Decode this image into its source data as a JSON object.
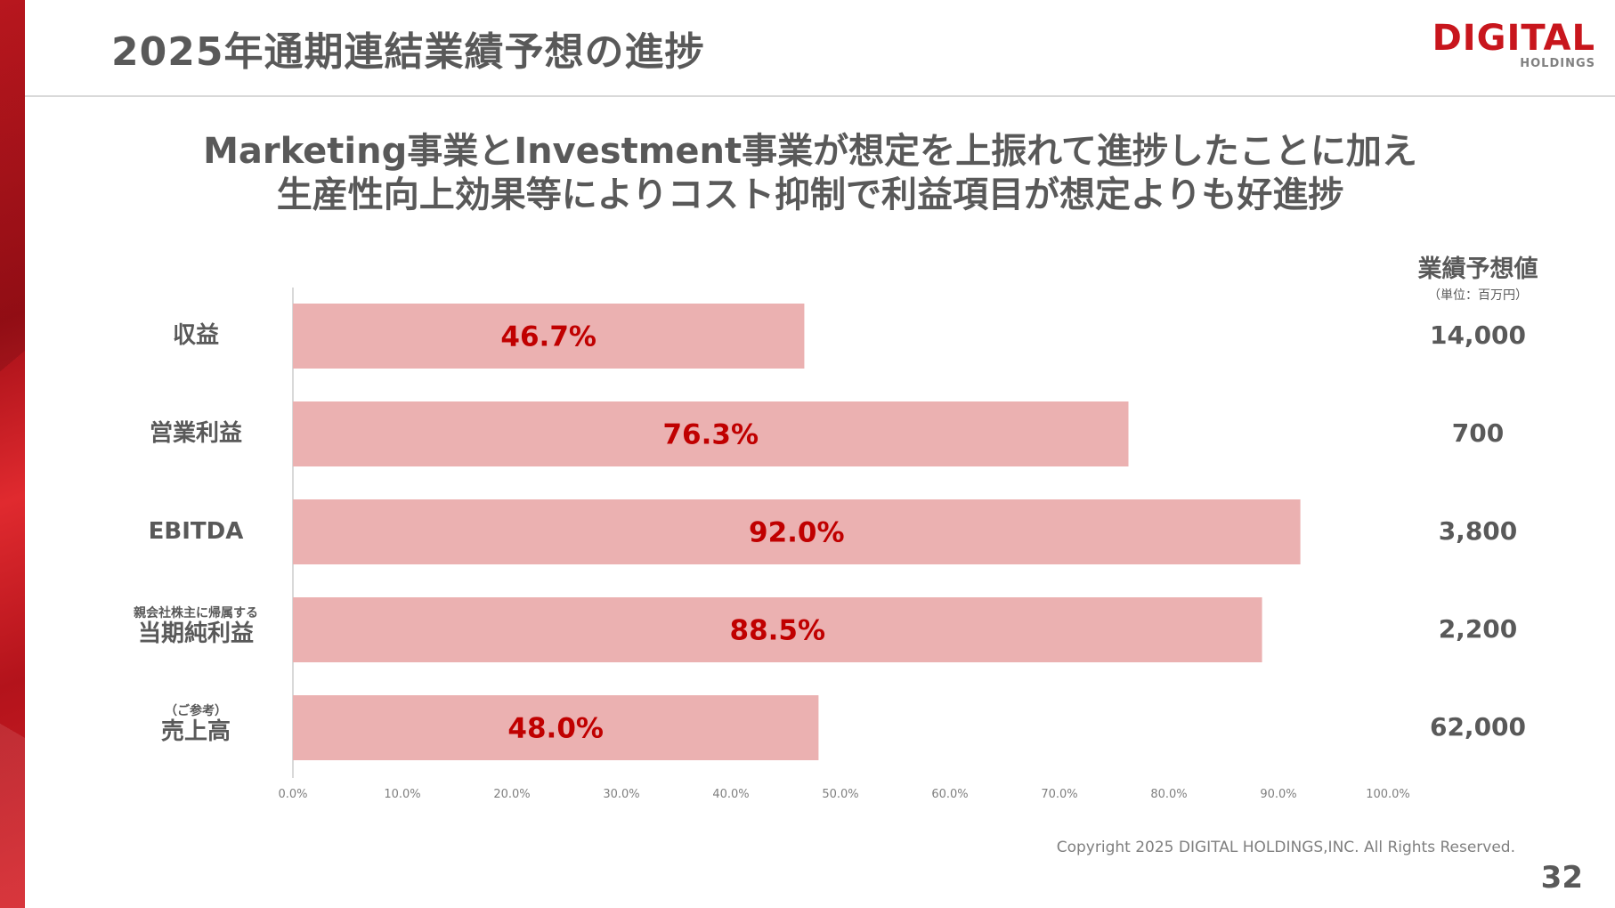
{
  "header": {
    "title": "2025年通期連結業績予想の進捗",
    "logo_main": "DIGITAL",
    "logo_sub": "HOLDINGS"
  },
  "headline": {
    "line1": "Marketing事業とInvestment事業が想定を上振れて進捗したことに加え",
    "line2": "生産性向上効果等によりコスト抑制で利益項目が想定よりも好進捗"
  },
  "value_column": {
    "title": "業績予想値",
    "unit": "（単位：百万円）"
  },
  "categories": [
    {
      "prefix": "",
      "label": "収益",
      "forecast": "14,000"
    },
    {
      "prefix": "",
      "label": "営業利益",
      "forecast": "700"
    },
    {
      "prefix": "",
      "label": "EBITDA",
      "forecast": "3,800"
    },
    {
      "prefix": "親会社株主に帰属する",
      "label": "当期純利益",
      "forecast": "2,200"
    },
    {
      "prefix": "（ご参考）",
      "label": "売上高",
      "forecast": "62,000"
    }
  ],
  "chart_data": {
    "type": "bar",
    "orientation": "horizontal",
    "categories": [
      "収益",
      "営業利益",
      "EBITDA",
      "当期純利益",
      "売上高"
    ],
    "values": [
      46.7,
      76.3,
      92.0,
      88.5,
      48.0
    ],
    "data_labels": [
      "46.7%",
      "76.3%",
      "92.0%",
      "88.5%",
      "48.0%"
    ],
    "xlim": [
      0,
      100
    ],
    "x_ticks": [
      "0.0%",
      "10.0%",
      "20.0%",
      "30.0%",
      "40.0%",
      "50.0%",
      "60.0%",
      "70.0%",
      "80.0%",
      "90.0%",
      "100.0%"
    ],
    "grid": false,
    "colors": {
      "bar": "#ebb1b1",
      "label": "#c00000",
      "axis": "#d9d9d9",
      "tick": "#7f7f7f"
    }
  },
  "footer": {
    "copyright": "Copyright 2025 DIGITAL HOLDINGS,INC. All Rights Reserved.",
    "page_number": "32"
  }
}
